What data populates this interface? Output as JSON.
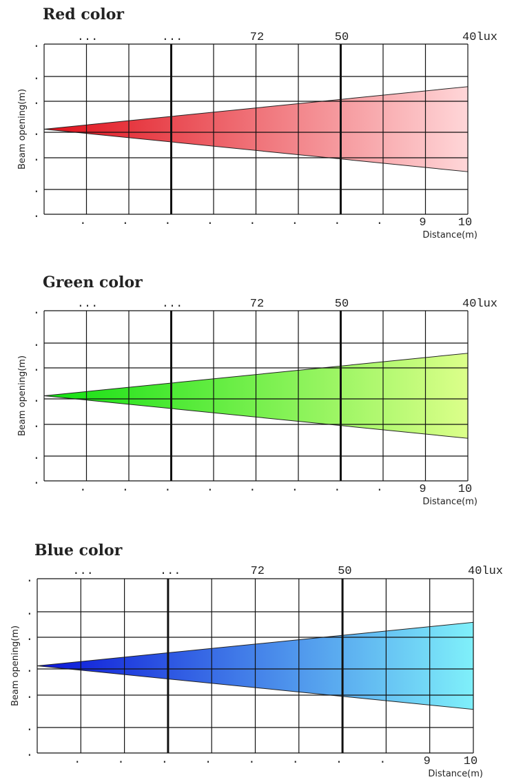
{
  "chart_data": [
    {
      "type": "area",
      "title": "Red color",
      "xlabel": "Distance(m)",
      "ylabel": "Beam opening(m)",
      "xlim": [
        0,
        10
      ],
      "ylim": [
        -2,
        2
      ],
      "x_tick_labels": [
        ".",
        ".",
        ".",
        ".",
        ".",
        ".",
        ".",
        ".",
        "9",
        "10"
      ],
      "y_tick_labels": [
        ".",
        ".",
        ".",
        ".",
        ".",
        ".",
        "."
      ],
      "lux_labels": [
        "...",
        "...",
        "72",
        "50",
        "40lux"
      ],
      "beam": {
        "x": [
          0,
          10
        ],
        "upper": [
          0,
          1.0
        ],
        "lower": [
          0,
          -1.0
        ]
      },
      "grid": true,
      "colors": {
        "start": "#e0101a",
        "end": "#ffd6d8"
      }
    },
    {
      "type": "area",
      "title": "Green color",
      "xlabel": "Distance(m)",
      "ylabel": "Beam opening(m)",
      "xlim": [
        0,
        10
      ],
      "ylim": [
        -2,
        2
      ],
      "x_tick_labels": [
        ".",
        ".",
        ".",
        ".",
        ".",
        ".",
        ".",
        ".",
        "9",
        "10"
      ],
      "y_tick_labels": [
        ".",
        ".",
        ".",
        ".",
        ".",
        ".",
        "."
      ],
      "lux_labels": [
        "...",
        "...",
        "72",
        "50",
        "40lux"
      ],
      "beam": {
        "x": [
          0,
          10
        ],
        "upper": [
          0,
          1.0
        ],
        "lower": [
          0,
          -1.0
        ]
      },
      "grid": true,
      "colors": {
        "start": "#10e010",
        "end": "#dcff8a"
      }
    },
    {
      "type": "area",
      "title": "Blue color",
      "xlabel": "Distance(m)",
      "ylabel": "Beam opening(m)",
      "xlim": [
        0,
        10
      ],
      "ylim": [
        -2,
        2
      ],
      "x_tick_labels": [
        ".",
        ".",
        ".",
        ".",
        ".",
        ".",
        ".",
        ".",
        "9",
        "10"
      ],
      "y_tick_labels": [
        ".",
        ".",
        ".",
        ".",
        ".",
        ".",
        "."
      ],
      "lux_labels": [
        "...",
        "...",
        "72",
        "50",
        "40lux"
      ],
      "beam": {
        "x": [
          0,
          10
        ],
        "upper": [
          0,
          1.0
        ],
        "lower": [
          0,
          -1.0
        ]
      },
      "grid": true,
      "colors": {
        "start": "#0a14d8",
        "end": "#7ff0fa"
      }
    }
  ]
}
